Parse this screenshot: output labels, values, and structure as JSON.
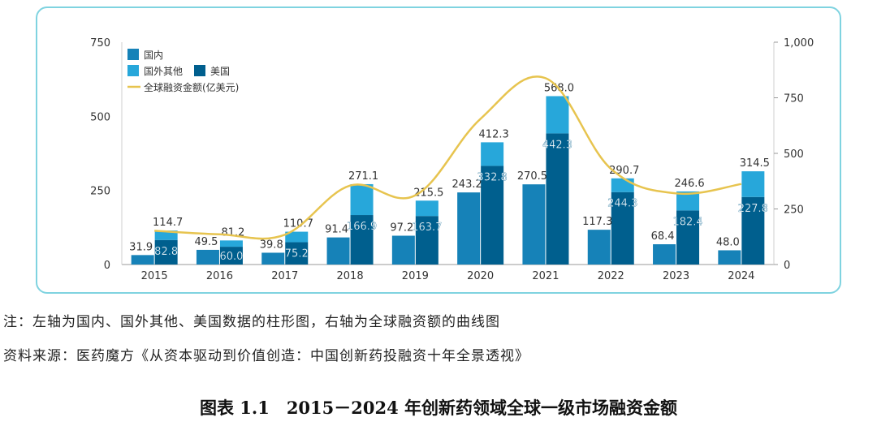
{
  "chart_data": {
    "type": "bar",
    "title": "2015－2024 年创新药领域全球一级市场融资金额",
    "categories": [
      "2015",
      "2016",
      "2017",
      "2018",
      "2019",
      "2020",
      "2021",
      "2022",
      "2023",
      "2024"
    ],
    "series": [
      {
        "name": "国内",
        "stack": "domestic",
        "values": [
          31.9,
          49.5,
          39.8,
          91.4,
          97.2,
          243.2,
          270.5,
          117.3,
          68.4,
          48.0
        ]
      },
      {
        "name": "美国",
        "stack": "foreign",
        "values": [
          82.8,
          60.0,
          75.2,
          166.9,
          163.7,
          332.8,
          442.3,
          244.3,
          182.4,
          227.8
        ]
      },
      {
        "name": "国外其他",
        "stack": "foreign",
        "values": [
          31.9,
          21.2,
          35.5,
          104.2,
          51.8,
          79.5,
          125.7,
          46.4,
          64.2,
          86.7
        ]
      },
      {
        "name": "全球融资金额(亿美元)",
        "type": "line",
        "axis": "right",
        "values": [
          152,
          136,
          134,
          355,
          311,
          655,
          838,
          431,
          320,
          362
        ]
      }
    ],
    "foreign_total_labels": [
      "114.7",
      "81.2",
      "110.7",
      "271.1",
      "215.5",
      "412.3",
      "568.0",
      "290.7",
      "246.6",
      "314.5"
    ],
    "domestic_labels": [
      "31.9",
      "49.5",
      "39.8",
      "91.4",
      "97.2",
      "243.2",
      "270.5",
      "117.3",
      "68.4",
      "48.0"
    ],
    "us_labels": [
      "82.8",
      "60.0",
      "75.2",
      "166.9",
      "163.7",
      "332.8",
      "442.3",
      "244.3",
      "182.4",
      "227.8"
    ],
    "y_left": {
      "lim": [
        0,
        750
      ],
      "ticks": [
        0,
        250,
        500,
        750
      ],
      "tick_labels": [
        "0",
        "250",
        "500",
        "750"
      ]
    },
    "y_right": {
      "lim": [
        0,
        1000
      ],
      "ticks": [
        0,
        250,
        500,
        750,
        1000
      ],
      "tick_labels": [
        "0",
        "250",
        "500",
        "750",
        "1,000"
      ]
    },
    "legend": {
      "position": "top-left",
      "items": [
        "国内",
        "国外其他",
        "美国",
        "全球融资金额(亿美元)"
      ]
    },
    "colors": {
      "domestic": "#1682b8",
      "us": "#005f8e",
      "foreign_other": "#27a7da",
      "line": "#e7c44f"
    }
  },
  "note": "注：左轴为国内、国外其他、美国数据的柱形图，右轴为全球融资额的曲线图",
  "source": "资料来源：医药魔方《从资本驱动到价值创造：中国创新药投融资十年全景透视》",
  "caption": "图表 1.1　2015－2024 年创新药领域全球一级市场融资金额"
}
